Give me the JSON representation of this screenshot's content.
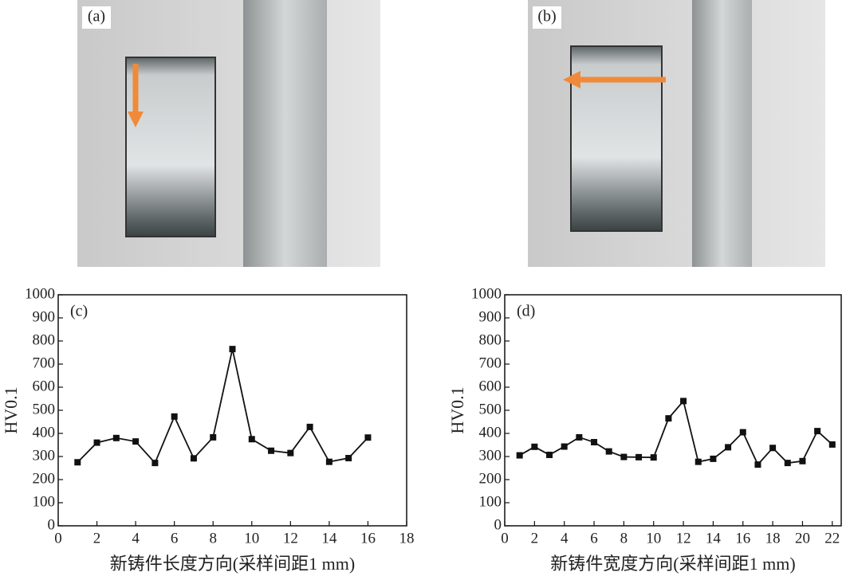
{
  "photos": [
    {
      "label": "(a)"
    },
    {
      "label": "(b)"
    }
  ],
  "chart_data": [
    {
      "type": "line",
      "label": "(c)",
      "x_label": "新铸件长度方向(采样间距1 mm)",
      "y_label": "HV0.1",
      "x": [
        1,
        2,
        3,
        4,
        5,
        6,
        7,
        8,
        9,
        10,
        11,
        12,
        13,
        14,
        15,
        16
      ],
      "series": [
        {
          "name": "HV0.1",
          "color": "#111111",
          "values": [
            275,
            360,
            380,
            365,
            272,
            473,
            292,
            383,
            765,
            375,
            325,
            315,
            428,
            277,
            293,
            382
          ]
        }
      ],
      "xlim": [
        0,
        18
      ],
      "xticks": [
        0,
        2,
        4,
        6,
        8,
        10,
        12,
        14,
        16,
        18
      ],
      "ylim": [
        0,
        1000
      ],
      "yticks": [
        0,
        100,
        200,
        300,
        400,
        500,
        600,
        700,
        800,
        900,
        1000
      ]
    },
    {
      "type": "line",
      "label": "(d)",
      "x_label": "新铸件宽度方向(采样间距1 mm)",
      "y_label": "HV0.1",
      "x": [
        1,
        2,
        3,
        4,
        5,
        6,
        7,
        8,
        9,
        10,
        11,
        12,
        13,
        14,
        15,
        16,
        17,
        18,
        19,
        20,
        21,
        22
      ],
      "series": [
        {
          "name": "HV0.1",
          "color": "#111111",
          "values": [
            305,
            342,
            307,
            343,
            383,
            362,
            322,
            298,
            297,
            296,
            465,
            540,
            277,
            290,
            340,
            405,
            265,
            337,
            272,
            280,
            410,
            352
          ]
        }
      ],
      "xlim": [
        0,
        22.6
      ],
      "xticks": [
        0,
        2,
        4,
        6,
        8,
        10,
        12,
        14,
        16,
        18,
        20,
        22
      ],
      "ylim": [
        0,
        1000
      ],
      "yticks": [
        0,
        100,
        200,
        300,
        400,
        500,
        600,
        700,
        800,
        900,
        1000
      ]
    }
  ]
}
